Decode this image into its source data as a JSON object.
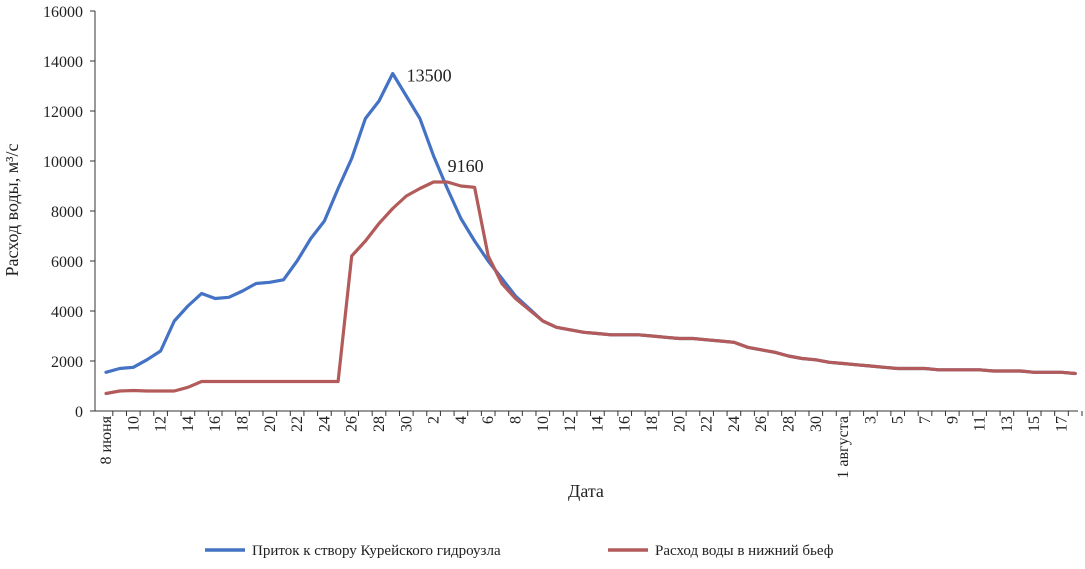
{
  "chart_data": {
    "type": "line",
    "title": "",
    "xlabel": "Дата",
    "ylabel": "Расход воды, м³/с",
    "ylim": [
      0,
      16000
    ],
    "yticks": [
      0,
      2000,
      4000,
      6000,
      8000,
      10000,
      12000,
      14000,
      16000
    ],
    "grid": false,
    "legend_position": "bottom",
    "x": [
      "8 июня",
      "9",
      "10",
      "11",
      "12",
      "13",
      "14",
      "15",
      "16",
      "17",
      "18",
      "19",
      "20",
      "21",
      "22",
      "23",
      "24",
      "25",
      "26",
      "27",
      "28",
      "29",
      "30",
      "1",
      "2",
      "3",
      "4",
      "5",
      "6",
      "7",
      "8",
      "9",
      "10",
      "11",
      "12",
      "13",
      "14",
      "15",
      "16",
      "17",
      "18",
      "19",
      "20",
      "21",
      "22",
      "23",
      "24",
      "25",
      "26",
      "27",
      "28",
      "29",
      "30",
      "31",
      "1 августа",
      "2",
      "3",
      "4",
      "5",
      "6",
      "7",
      "8",
      "9",
      "10",
      "11",
      "12",
      "13",
      "14",
      "15",
      "16",
      "17",
      "18"
    ],
    "x_tick_labels": [
      "8 июня",
      "10",
      "12",
      "14",
      "16",
      "18",
      "20",
      "22",
      "24",
      "26",
      "28",
      "30",
      "2",
      "4",
      "6",
      "8",
      "10",
      "12",
      "14",
      "16",
      "18",
      "20",
      "22",
      "24",
      "26",
      "28",
      "30",
      "1 августа",
      "3",
      "5",
      "7",
      "9",
      "11",
      "13",
      "15",
      "17"
    ],
    "series": [
      {
        "name": "Приток к створу Курейского гидроузла",
        "color": "#4472c4",
        "values": [
          1550,
          1700,
          1750,
          2050,
          2400,
          3600,
          4200,
          4700,
          4500,
          4550,
          4800,
          5100,
          5150,
          5250,
          6000,
          6900,
          7600,
          8900,
          10100,
          11700,
          12400,
          13500,
          12600,
          11700,
          10200,
          8900,
          7700,
          6800,
          6000,
          5300,
          4600,
          4100,
          3600,
          3350,
          3250,
          3150,
          3100,
          3050,
          3050,
          3050,
          3000,
          2950,
          2900,
          2900,
          2850,
          2800,
          2750,
          2550,
          2450,
          2350,
          2200,
          2100,
          2050,
          1950,
          1900,
          1850,
          1800,
          1750,
          1700,
          1700,
          1700,
          1650,
          1650,
          1650,
          1650,
          1600,
          1600,
          1600,
          1550,
          1550,
          1550,
          1500
        ]
      },
      {
        "name": "Расход воды в нижний бьеф",
        "color": "#b35a5a",
        "values": [
          700,
          800,
          820,
          800,
          800,
          800,
          950,
          1180,
          1180,
          1180,
          1180,
          1180,
          1180,
          1180,
          1180,
          1180,
          1180,
          1180,
          6200,
          6800,
          7500,
          8100,
          8600,
          8900,
          9160,
          9160,
          9000,
          8950,
          6200,
          5100,
          4500,
          4050,
          3600,
          3350,
          3250,
          3150,
          3100,
          3050,
          3050,
          3050,
          3000,
          2950,
          2900,
          2900,
          2850,
          2800,
          2750,
          2550,
          2450,
          2350,
          2200,
          2100,
          2050,
          1950,
          1900,
          1850,
          1800,
          1750,
          1700,
          1700,
          1700,
          1650,
          1650,
          1650,
          1650,
          1600,
          1600,
          1600,
          1550,
          1550,
          1550,
          1500
        ]
      }
    ],
    "annotations": [
      {
        "text": "13500",
        "series": 0,
        "x": "29"
      },
      {
        "text": "9160",
        "series": 1,
        "x": "2"
      }
    ]
  },
  "colors": {
    "axis": "#333333",
    "text": "#222222",
    "series_1": "#4472c4",
    "series_2": "#b35a5a"
  }
}
